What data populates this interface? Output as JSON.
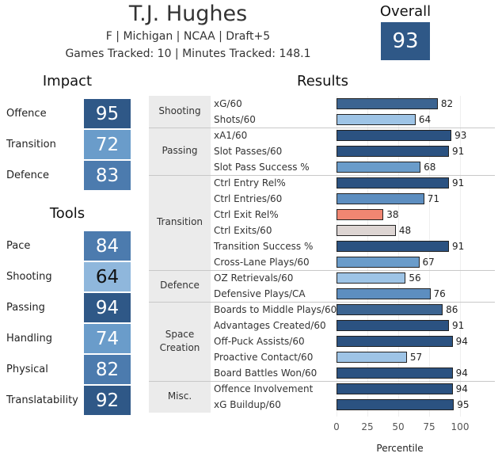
{
  "player": {
    "name": "T.J. Hughes",
    "info": "F | Michigan | NCAA | Draft+5",
    "games": "Games Tracked: 10 | Minutes Tracked: 148.1"
  },
  "overall": {
    "label": "Overall",
    "value": "93",
    "color": "#2f5887"
  },
  "impact": {
    "title": "Impact",
    "items": [
      {
        "label": "Offence",
        "value": "95",
        "color": "#2f5887"
      },
      {
        "label": "Transition",
        "value": "72",
        "color": "#6a9cca"
      },
      {
        "label": "Defence",
        "value": "83",
        "color": "#4c7bae"
      }
    ]
  },
  "tools": {
    "title": "Tools",
    "items": [
      {
        "label": "Pace",
        "value": "84",
        "color": "#4c7bae"
      },
      {
        "label": "Shooting",
        "value": "64",
        "color": "#8fb7dc"
      },
      {
        "label": "Passing",
        "value": "94",
        "color": "#2f5887"
      },
      {
        "label": "Handling",
        "value": "74",
        "color": "#6a9cca"
      },
      {
        "label": "Physical",
        "value": "82",
        "color": "#4c7bae"
      },
      {
        "label": "Translatability",
        "value": "92",
        "color": "#2f5887"
      }
    ]
  },
  "results": {
    "title": "Results",
    "groups": [
      {
        "name": "Shooting",
        "rows": [
          {
            "label": "xG/60",
            "value": 82,
            "color": "#3c6491"
          },
          {
            "label": "Shots/60",
            "value": 64,
            "color": "#9ec4e6"
          }
        ]
      },
      {
        "name": "Passing",
        "rows": [
          {
            "label": "xA1/60",
            "value": 93,
            "color": "#2b5281"
          },
          {
            "label": "Slot Passes/60",
            "value": 91,
            "color": "#2b5281"
          },
          {
            "label": "Slot Pass Success %",
            "value": 68,
            "color": "#6a9cca"
          }
        ]
      },
      {
        "name": "Transition",
        "rows": [
          {
            "label": "Ctrl Entry Rel%",
            "value": 91,
            "color": "#2b5281"
          },
          {
            "label": "Ctrl Entries/60",
            "value": 71,
            "color": "#5d8ec0"
          },
          {
            "label": "Ctrl Exit Rel%",
            "value": 38,
            "color": "#f08672"
          },
          {
            "label": "Ctrl Exits/60",
            "value": 48,
            "color": "#ddd5d3"
          },
          {
            "label": "Transition Success %",
            "value": 91,
            "color": "#2b5281"
          },
          {
            "label": "Cross-Lane Plays/60",
            "value": 67,
            "color": "#6a9cca"
          }
        ]
      },
      {
        "name": "Defence",
        "rows": [
          {
            "label": "OZ Retrievals/60",
            "value": 56,
            "color": "#9ec4e6"
          },
          {
            "label": "Defensive Plays/CA",
            "value": 76,
            "color": "#5d8ec0"
          }
        ]
      },
      {
        "name": "Space Creation",
        "rows": [
          {
            "label": "Boards to Middle Plays/60",
            "value": 86,
            "color": "#3c6491"
          },
          {
            "label": "Advantages Created/60",
            "value": 91,
            "color": "#2b5281"
          },
          {
            "label": "Off-Puck Assists/60",
            "value": 94,
            "color": "#2b5281"
          },
          {
            "label": "Proactive Contact/60",
            "value": 57,
            "color": "#9ec4e6"
          },
          {
            "label": "Board Battles Won/60",
            "value": 94,
            "color": "#2b5281"
          }
        ]
      },
      {
        "name": "Misc.",
        "rows": [
          {
            "label": "Offence Involvement",
            "value": 94,
            "color": "#2b5281"
          },
          {
            "label": "xG Buildup/60",
            "value": 95,
            "color": "#2b5281"
          }
        ]
      }
    ],
    "axis": {
      "ticks": [
        0,
        25,
        50,
        75,
        100
      ],
      "title": "Percentile",
      "range": [
        0,
        100
      ]
    }
  }
}
